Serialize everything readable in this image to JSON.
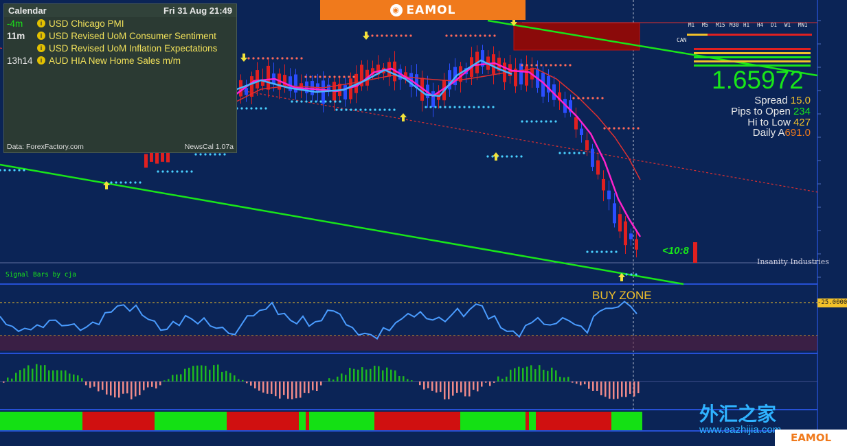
{
  "brand": {
    "name": "EAMOL",
    "watermark_cn": "外汇之家",
    "watermark_url": "www.eazhijia.com"
  },
  "calendar": {
    "title": "Calendar",
    "date": "Fri 31 Aug 21:49",
    "events": [
      {
        "time": "-4m",
        "title": "USD Chicago PMI"
      },
      {
        "time": "11m",
        "title": "USD Revised UoM Consumer Sentiment"
      },
      {
        "time": "",
        "title": "USD Revised UoM Inflation Expectations"
      },
      {
        "time": "13h14",
        "title": "AUD HIA New Home Sales m/m"
      }
    ],
    "source": "Data: ForexFactory.com",
    "version": "NewsCal 1.07a"
  },
  "info": {
    "price": "1.65972",
    "spread_label": "Spread",
    "spread": "15.0",
    "pips_label": "Pips to Open",
    "pips": "234",
    "hilo_label": "Hi to Low",
    "hilo": "427",
    "daily_label": "Daily A",
    "daily": "691.0"
  },
  "labels": {
    "signal_bars": "Signal Bars by cja",
    "buy_zone": "BUY ZONE",
    "ratio": "<10:8",
    "insanity": "Insanity Industries",
    "rsi_level": "-25.0000",
    "can": "CAN"
  },
  "timeframes": [
    "M1",
    "M5",
    "M15",
    "M30",
    "H1",
    "H4",
    "D1",
    "W1",
    "MN1"
  ],
  "colors": {
    "background": "#0b2456",
    "bull": "#2a4dff",
    "bear": "#e02020",
    "trend_line": "#19e619",
    "price_text": "#19e619",
    "brand": "#f07a1c"
  }
}
